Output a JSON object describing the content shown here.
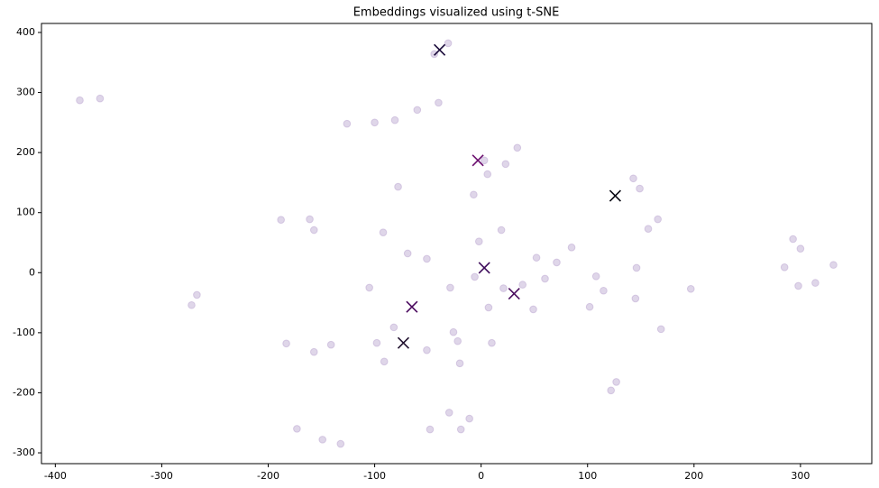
{
  "chart_data": {
    "type": "scatter",
    "title": "Embeddings visualized using t-SNE",
    "xlim": [
      -413,
      367
    ],
    "ylim": [
      -318,
      415
    ],
    "xticks": [
      -400,
      -300,
      -200,
      -100,
      0,
      100,
      200,
      300
    ],
    "yticks": [
      -300,
      -200,
      -100,
      0,
      100,
      200,
      300,
      400
    ],
    "series": [
      {
        "marker": "o",
        "color": "#b9a3cf",
        "x": [
          -377,
          -358,
          -126,
          -100,
          -81,
          -60,
          -40,
          -44,
          -31,
          -188,
          -161,
          -157,
          -92,
          -78,
          -267,
          -272,
          -105,
          -69,
          -51,
          -29,
          -7,
          -2,
          -6,
          19,
          34,
          23,
          6,
          3,
          7,
          21,
          39,
          52,
          71,
          85,
          60,
          49,
          108,
          115,
          102,
          143,
          149,
          157,
          166,
          146,
          145,
          169,
          197,
          127,
          122,
          285,
          293,
          300,
          298,
          314,
          331,
          -183,
          -157,
          -141,
          -98,
          -82,
          -91,
          -51,
          -26,
          -22,
          -20,
          10,
          -173,
          -149,
          -132,
          -48,
          -30,
          -19,
          -11
        ],
        "y": [
          287,
          290,
          248,
          250,
          254,
          271,
          283,
          364,
          382,
          88,
          89,
          71,
          67,
          143,
          -37,
          -54,
          -25,
          32,
          23,
          -25,
          130,
          52,
          -7,
          71,
          208,
          181,
          164,
          187,
          -58,
          -26,
          -20,
          25,
          17,
          42,
          -10,
          -61,
          -6,
          -30,
          -57,
          157,
          140,
          73,
          89,
          8,
          -43,
          -94,
          -27,
          -182,
          -196,
          9,
          56,
          40,
          -22,
          -17,
          13,
          -118,
          -132,
          -120,
          -117,
          -91,
          -148,
          -129,
          -99,
          -114,
          -151,
          -117,
          -260,
          -278,
          -285,
          -261,
          -233,
          -261,
          -243
        ]
      },
      {
        "marker": "x",
        "colors": [
          "#1a0a3a",
          "#6b0e6e",
          "#0a0a14",
          "#3d0a5a",
          "#4a0c5e",
          "#4b0a5e",
          "#20102e"
        ],
        "x": [
          -39,
          -3,
          126,
          3,
          31,
          -65,
          -73
        ],
        "y": [
          371,
          187,
          128,
          8,
          -35,
          -57,
          -117
        ]
      }
    ]
  }
}
